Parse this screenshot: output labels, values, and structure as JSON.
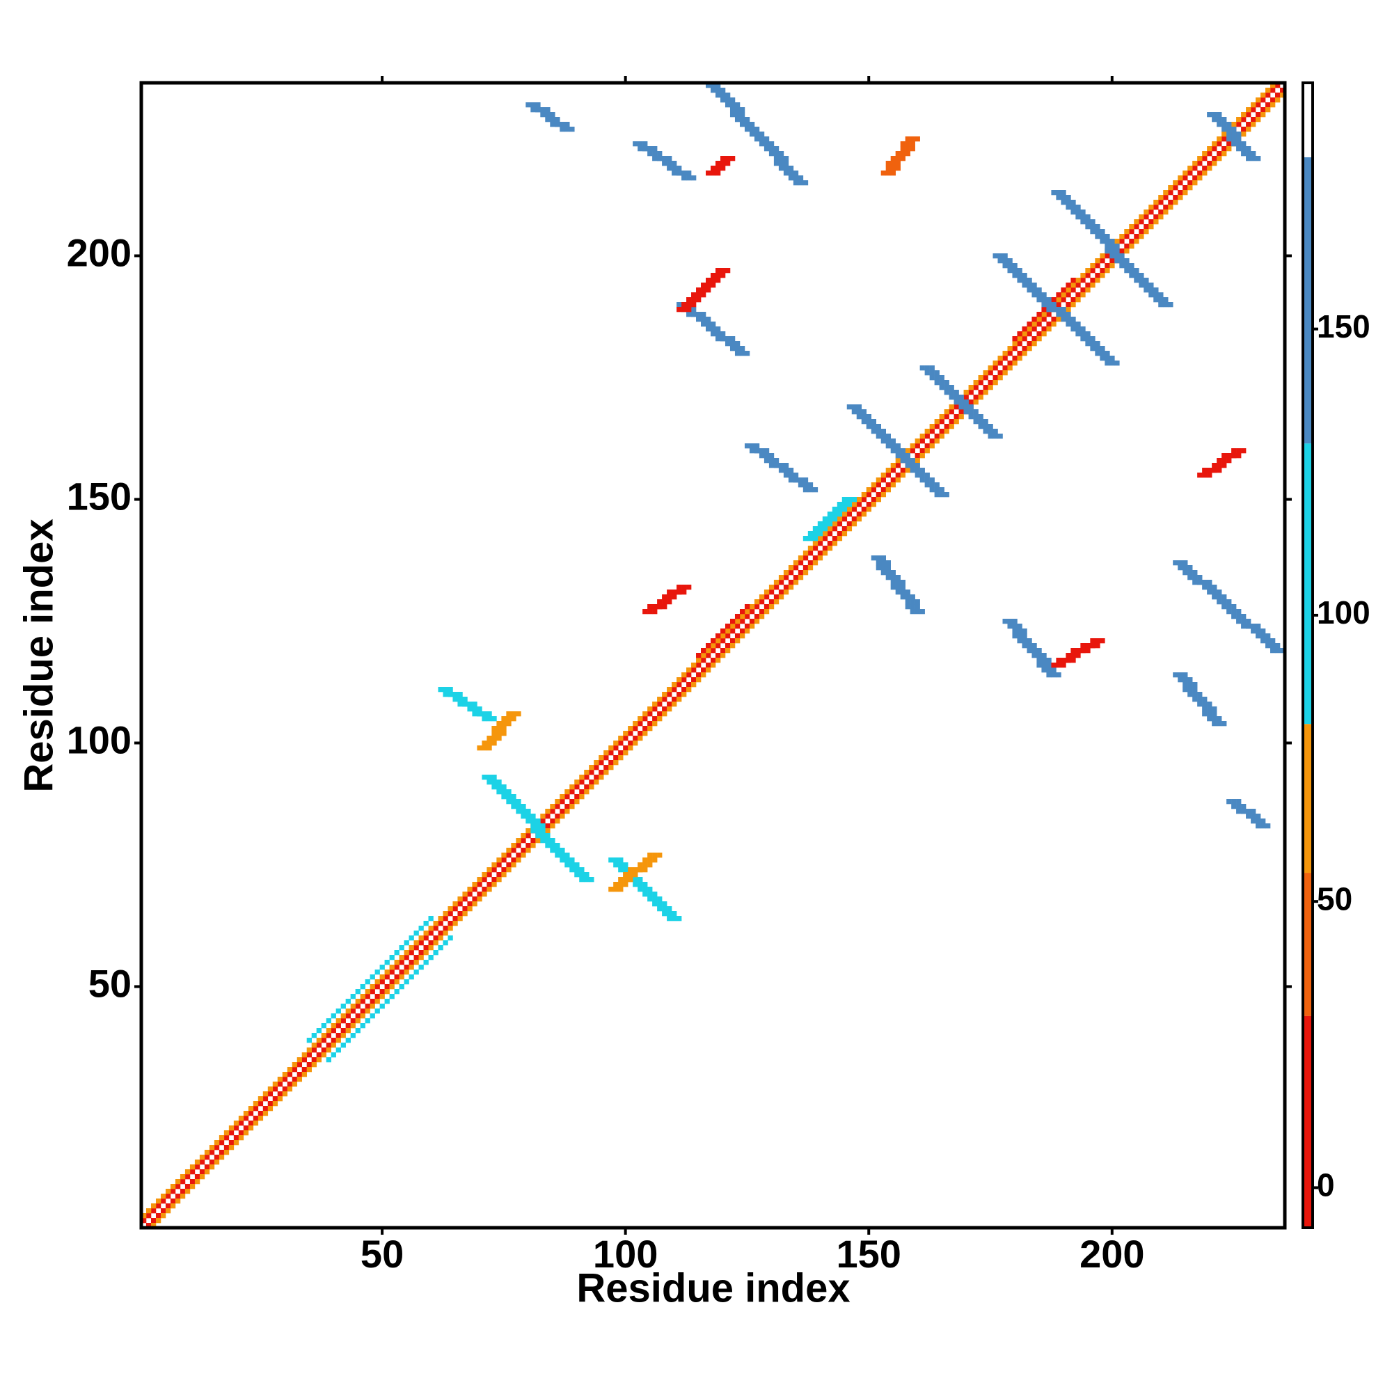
{
  "chart_data": {
    "type": "heatmap",
    "x_label": "Residue index",
    "y_label": "Residue index",
    "xlim": [
      0.5,
      235.5
    ],
    "ylim": [
      0.5,
      235.5
    ],
    "xticks": [
      50,
      100,
      150,
      200
    ],
    "yticks": [
      50,
      100,
      150,
      200
    ],
    "colorbar": {
      "clim": [
        -7,
        193
      ],
      "ticks": [
        0,
        50,
        100,
        150
      ],
      "stops": [
        {
          "from": -7,
          "to": 30,
          "color": "#e8160c"
        },
        {
          "from": 30,
          "to": 55,
          "color": "#f0620e"
        },
        {
          "from": 55,
          "to": 81,
          "color": "#f5960c"
        },
        {
          "from": 81,
          "to": 130,
          "color": "#1cd2e6"
        },
        {
          "from": 130,
          "to": 180,
          "color": "#4a88c2"
        },
        {
          "from": 180,
          "to": 193,
          "color": "#ffffff"
        }
      ]
    },
    "diagonal_bands": [
      {
        "x": [
          1,
          234
        ],
        "y": [
          2,
          235
        ],
        "value": 10
      },
      {
        "x": [
          2,
          235
        ],
        "y": [
          1,
          234
        ],
        "value": 10
      },
      {
        "x": [
          1,
          233
        ],
        "y": [
          3,
          235
        ],
        "value": 60
      },
      {
        "x": [
          3,
          235
        ],
        "y": [
          1,
          233
        ],
        "value": 60
      },
      {
        "x": [
          35,
          60
        ],
        "y": [
          39,
          64
        ],
        "value": 100
      },
      {
        "x": [
          39,
          64
        ],
        "y": [
          35,
          60
        ],
        "value": 100
      },
      {
        "x": [
          115,
          125
        ],
        "y": [
          118,
          128
        ],
        "value": 10
      },
      {
        "x": [
          180,
          192
        ],
        "y": [
          183,
          195
        ],
        "value": 10
      }
    ],
    "contacts": [
      {
        "x": [
          72,
          92
        ],
        "y": [
          93,
          72
        ],
        "value": 100
      },
      {
        "x": [
          63,
          72
        ],
        "y": [
          111,
          105
        ],
        "value": 100
      },
      {
        "x": [
          71,
          77
        ],
        "y": [
          99,
          106
        ],
        "value": 60
      },
      {
        "x": [
          98,
          110
        ],
        "y": [
          76,
          64
        ],
        "value": 100
      },
      {
        "x": [
          98,
          106
        ],
        "y": [
          70,
          77
        ],
        "value": 55
      },
      {
        "x": [
          103,
          113
        ],
        "y": [
          223,
          216
        ],
        "value": 160
      },
      {
        "x": [
          81,
          88
        ],
        "y": [
          231,
          226
        ],
        "value": 160
      },
      {
        "x": [
          118,
          136
        ],
        "y": [
          235,
          215
        ],
        "value": 160
      },
      {
        "x": [
          112,
          124
        ],
        "y": [
          190,
          180
        ],
        "value": 160
      },
      {
        "x": [
          112,
          120
        ],
        "y": [
          189,
          197
        ],
        "value": 15
      },
      {
        "x": [
          126,
          138
        ],
        "y": [
          161,
          152
        ],
        "value": 160
      },
      {
        "x": [
          147,
          165
        ],
        "y": [
          169,
          151
        ],
        "value": 160
      },
      {
        "x": [
          162,
          176
        ],
        "y": [
          177,
          163
        ],
        "value": 160
      },
      {
        "x": [
          152,
          160
        ],
        "y": [
          138,
          127
        ],
        "value": 160
      },
      {
        "x": [
          179,
          188
        ],
        "y": [
          125,
          114
        ],
        "value": 160
      },
      {
        "x": [
          189,
          197
        ],
        "y": [
          116,
          121
        ],
        "value": 15
      },
      {
        "x": [
          177,
          200
        ],
        "y": [
          200,
          178
        ],
        "value": 160
      },
      {
        "x": [
          189,
          211
        ],
        "y": [
          213,
          190
        ],
        "value": 160
      },
      {
        "x": [
          214,
          234
        ],
        "y": [
          137,
          119
        ],
        "value": 160
      },
      {
        "x": [
          214,
          222
        ],
        "y": [
          114,
          104
        ],
        "value": 160
      },
      {
        "x": [
          225,
          231
        ],
        "y": [
          88,
          83
        ],
        "value": 160
      },
      {
        "x": [
          221,
          229
        ],
        "y": [
          229,
          220
        ],
        "value": 160
      },
      {
        "x": [
          154,
          159
        ],
        "y": [
          217,
          224
        ],
        "value": 30
      },
      {
        "x": [
          118,
          121
        ],
        "y": [
          217,
          220
        ],
        "value": 15
      },
      {
        "x": [
          219,
          226
        ],
        "y": [
          155,
          160
        ],
        "value": 15
      },
      {
        "x": [
          138,
          146
        ],
        "y": [
          142,
          150
        ],
        "value": 100
      },
      {
        "x": [
          105,
          112
        ],
        "y": [
          127,
          132
        ],
        "value": 15
      }
    ]
  }
}
